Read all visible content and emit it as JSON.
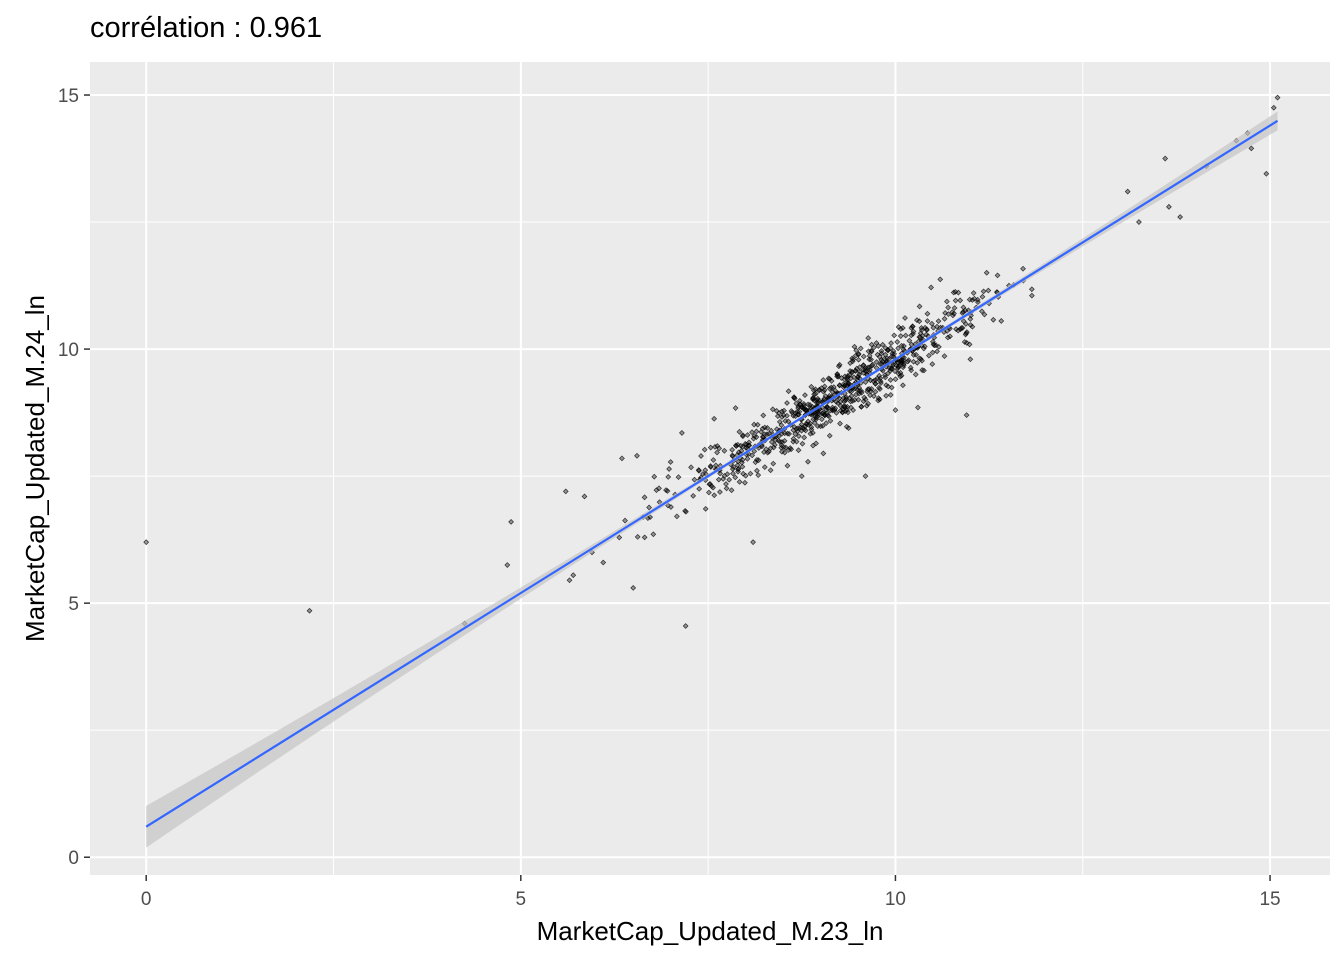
{
  "chart_data": {
    "type": "scatter",
    "title": "corrélation : 0.961",
    "xlabel": "MarketCap_Updated_M.23_ln",
    "ylabel": "MarketCap_Updated_M.24_ln",
    "xlim": [
      -0.75,
      15.8
    ],
    "ylim": [
      -0.35,
      15.65
    ],
    "x_ticks": [
      0,
      5,
      10,
      15
    ],
    "y_ticks": [
      0,
      5,
      10,
      15
    ],
    "x_tick_labels": [
      "0",
      "5",
      "10",
      "15"
    ],
    "y_tick_labels": [
      "0",
      "5",
      "10",
      "15"
    ],
    "grid": true,
    "legend": "none",
    "panel_background": "#ebebeb",
    "point_color": "#000000",
    "fit_line": {
      "method": "linear regression",
      "color": "#3366ff",
      "band_color": "#c5c5c5",
      "intercept": 0.6,
      "slope": 0.92,
      "x_range": [
        0,
        15.1
      ]
    },
    "points_outliers": [
      [
        0.0,
        6.2
      ],
      [
        2.18,
        4.85
      ],
      [
        4.25,
        4.6
      ],
      [
        4.82,
        5.75
      ],
      [
        4.87,
        6.6
      ],
      [
        5.6,
        7.2
      ],
      [
        5.65,
        5.45
      ],
      [
        5.7,
        5.55
      ],
      [
        5.85,
        7.1
      ],
      [
        5.95,
        6.0
      ],
      [
        6.1,
        5.8
      ],
      [
        6.35,
        7.85
      ],
      [
        6.5,
        5.3
      ],
      [
        6.55,
        7.9
      ],
      [
        7.2,
        4.55
      ],
      [
        7.15,
        8.35
      ],
      [
        8.1,
        6.2
      ],
      [
        8.75,
        7.5
      ],
      [
        8.9,
        8.1
      ],
      [
        9.6,
        7.5
      ],
      [
        10.0,
        8.8
      ],
      [
        10.3,
        8.85
      ],
      [
        10.95,
        8.7
      ],
      [
        11.0,
        9.8
      ],
      [
        13.1,
        13.1
      ],
      [
        13.25,
        12.5
      ],
      [
        13.6,
        13.75
      ],
      [
        13.65,
        12.8
      ],
      [
        13.8,
        12.6
      ],
      [
        14.15,
        13.6
      ],
      [
        14.55,
        14.1
      ],
      [
        14.7,
        14.25
      ],
      [
        14.75,
        13.95
      ],
      [
        14.95,
        13.45
      ],
      [
        15.05,
        14.75
      ],
      [
        15.1,
        14.95
      ]
    ],
    "points_cluster": {
      "count": 780,
      "x_center": 9.2,
      "x_spread": 1.05,
      "x_range": [
        6.3,
        12.8
      ],
      "y_relation": "y ≈ 0.6 + 0.92·x",
      "y_residual_sd": 0.3
    }
  }
}
